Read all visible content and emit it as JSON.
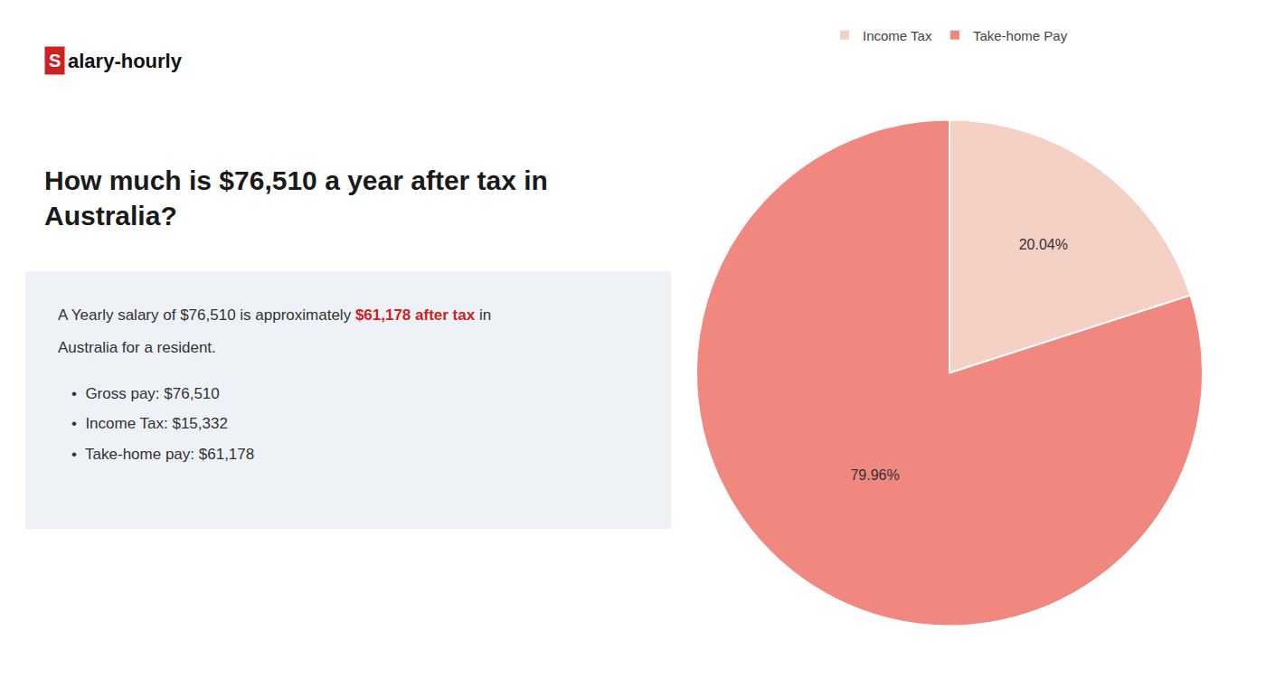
{
  "chart_data": {
    "type": "pie",
    "title": [
      "How much is $76,510 a year after tax in",
      "Australia?"
    ],
    "annotations": [
      {
        "text": "S",
        "color": "#cc2222"
      },
      {
        "text": "alary-hourly"
      },
      {
        "text": "A Yearly salary of $76,510 is approximately "
      },
      {
        "text": "$61,178 after tax",
        "color": "#cc2222"
      },
      {
        "text": " in"
      },
      {
        "text": "Australia for a resident."
      },
      {
        "text": "•  Gross pay: $76,510"
      },
      {
        "text": "•  Income Tax: $15,332"
      },
      {
        "text": "•  Take-home pay: $61,178"
      }
    ],
    "categories": [
      "Income Tax",
      "Take-home Pay"
    ],
    "values": [
      20.04,
      79.96
    ],
    "value_labels": [
      "20.04%",
      "79.96%"
    ],
    "colors": [
      "#f5d0c5",
      "#f08880"
    ],
    "data_labels": true,
    "legend": "top"
  }
}
